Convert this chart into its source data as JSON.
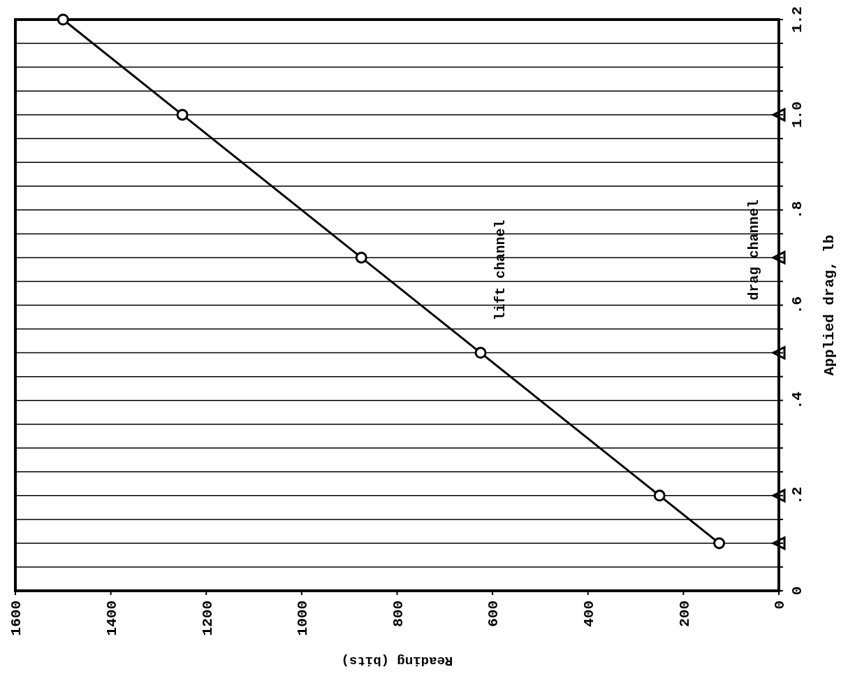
{
  "chart_data": {
    "type": "line",
    "xlabel": "Reading (bits)",
    "ylabel": "Applied drag, lb",
    "xlim": [
      1600,
      0
    ],
    "ylim": [
      0,
      1.2
    ],
    "xticks": [
      0,
      200,
      400,
      600,
      800,
      1000,
      1200,
      1400,
      1600
    ],
    "yticks": [
      0,
      {
        "value": 0.05,
        "label": null
      },
      {
        "value": 0.1,
        "label": null
      },
      {
        "value": 0.15,
        "label": null
      },
      {
        "value": 0.2,
        "label": ".2"
      },
      {
        "value": 0.25,
        "label": null
      },
      {
        "value": 0.3,
        "label": null
      },
      {
        "value": 0.35,
        "label": null
      },
      {
        "value": 0.4,
        "label": ".4"
      },
      {
        "value": 0.45,
        "label": null
      },
      {
        "value": 0.5,
        "label": null
      },
      {
        "value": 0.55,
        "label": null
      },
      {
        "value": 0.6,
        "label": ".6"
      },
      {
        "value": 0.65,
        "label": null
      },
      {
        "value": 0.7,
        "label": null
      },
      {
        "value": 0.75,
        "label": null
      },
      {
        "value": 0.8,
        "label": ".8"
      },
      {
        "value": 0.85,
        "label": null
      },
      {
        "value": 0.9,
        "label": null
      },
      {
        "value": 0.95,
        "label": null
      },
      {
        "value": 1.0,
        "label": "1.0"
      },
      {
        "value": 1.05,
        "label": null
      },
      {
        "value": 1.1,
        "label": null
      },
      {
        "value": 1.15,
        "label": null
      },
      {
        "value": 1.2,
        "label": "1.2"
      }
    ],
    "grid": "y",
    "legend": false,
    "series": [
      {
        "name": "lift channel",
        "color": "#000000",
        "marker": "circle",
        "x": [
          125,
          250,
          625,
          875,
          1250,
          1500
        ],
        "values": [
          0.1,
          0.2,
          0.5,
          0.7,
          1.0,
          1.2
        ]
      },
      {
        "name": "drag channel",
        "type": "scatter",
        "color": "#000000",
        "marker": "triangle",
        "x": [
          0,
          0,
          0,
          0,
          0
        ],
        "values": [
          0.1,
          0.2,
          0.5,
          0.7,
          1.0
        ]
      }
    ]
  }
}
